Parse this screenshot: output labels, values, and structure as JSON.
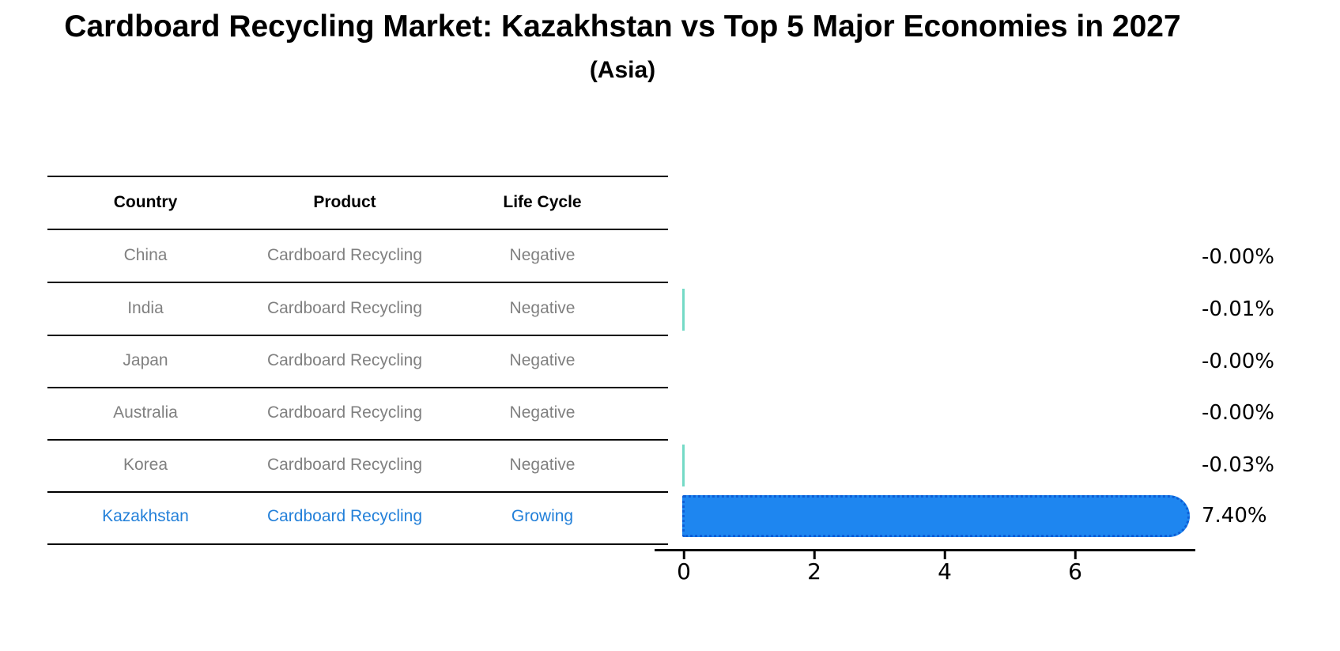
{
  "title": "Cardboard Recycling Market: Kazakhstan vs Top 5 Major Economies in 2027",
  "subtitle": "(Asia)",
  "table": {
    "headers": {
      "country": "Country",
      "product": "Product",
      "life_cycle": "Life Cycle"
    },
    "rows": [
      {
        "country": "China",
        "product": "Cardboard Recycling",
        "life_cycle": "Negative",
        "highlighted": false
      },
      {
        "country": "India",
        "product": "Cardboard Recycling",
        "life_cycle": "Negative",
        "highlighted": false
      },
      {
        "country": "Japan",
        "product": "Cardboard Recycling",
        "life_cycle": "Negative",
        "highlighted": false
      },
      {
        "country": "Australia",
        "product": "Cardboard Recycling",
        "life_cycle": "Negative",
        "highlighted": false
      },
      {
        "country": "Korea",
        "product": "Cardboard Recycling",
        "life_cycle": "Negative",
        "highlighted": false
      },
      {
        "country": "Kazakhstan",
        "product": "Cardboard Recycling",
        "life_cycle": "Growing",
        "highlighted": true
      }
    ]
  },
  "chart_data": {
    "type": "bar",
    "orientation": "horizontal",
    "title": "Cardboard Recycling Market: Kazakhstan vs Top 5 Major Economies in 2027 (Asia)",
    "categories": [
      "China",
      "India",
      "Japan",
      "Australia",
      "Korea",
      "Kazakhstan"
    ],
    "values": [
      -0.0,
      -0.01,
      -0.0,
      -0.0,
      -0.03,
      7.4
    ],
    "value_labels": [
      "-0.00%",
      "-0.01%",
      "-0.00%",
      "-0.00%",
      "-0.03%",
      "7.40%"
    ],
    "x_ticks": [
      0,
      2,
      4,
      6
    ],
    "x_tick_labels": [
      "0",
      "2",
      "4",
      "6"
    ],
    "xlim": [
      -0.45,
      7.85
    ],
    "grid": false,
    "legend": "none",
    "colors": {
      "highlight_bar": "#1e86f0",
      "highlight_bar_edge": "#0d5ed6",
      "negative_bar": "#74dac6",
      "highlight_text": "#2380d9",
      "row_text": "#808080"
    }
  }
}
